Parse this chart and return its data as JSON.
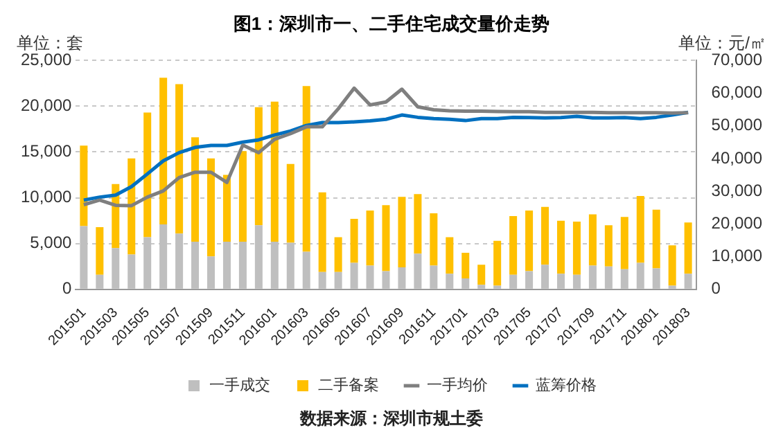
{
  "chart_data": {
    "type": "bar",
    "title": "图1：深圳市一、二手住宅成交量价走势",
    "ylabel": "单位：套",
    "y2label": "单位：元/㎡",
    "categories": [
      "201501",
      null,
      "201503",
      null,
      "201505",
      null,
      "201507",
      null,
      "201509",
      null,
      "201511",
      null,
      "201601",
      null,
      "201603",
      null,
      "201605",
      null,
      "201607",
      null,
      "201609",
      null,
      "201611",
      null,
      "201701",
      null,
      "201703",
      null,
      "201705",
      null,
      "201707",
      null,
      "201709",
      null,
      "201711",
      null,
      "201801",
      null,
      "201803"
    ],
    "stacked": true,
    "series": [
      {
        "name": "一手成交",
        "color": "#bfbfbf",
        "values": [
          6900,
          1600,
          4500,
          3800,
          5700,
          7100,
          6100,
          5200,
          3600,
          5200,
          5200,
          7000,
          5200,
          5100,
          4100,
          1900,
          1900,
          2900,
          2600,
          2000,
          2400,
          3900,
          2600,
          1700,
          1200,
          500,
          400,
          1600,
          2000,
          2700,
          1700,
          1600,
          2600,
          2500,
          2200,
          2900,
          2300,
          400,
          1700
        ]
      },
      {
        "name": "二手备案",
        "color": "#ffc000",
        "values": [
          8800,
          5200,
          7000,
          10500,
          13600,
          16000,
          16300,
          11400,
          10700,
          7300,
          9900,
          12900,
          15300,
          8600,
          18100,
          8700,
          3800,
          4800,
          6000,
          7200,
          7700,
          6500,
          5700,
          4000,
          2800,
          2200,
          4900,
          6400,
          6600,
          6300,
          5800,
          5800,
          5600,
          4500,
          5700,
          7300,
          6400,
          4400,
          5600
        ]
      },
      {
        "name": "一手均价",
        "type": "line",
        "axis": "y2",
        "color": "#7f7f7f",
        "values": [
          25900,
          27300,
          25700,
          25600,
          28200,
          30100,
          34200,
          35800,
          35800,
          32700,
          44100,
          41800,
          45900,
          47600,
          49700,
          49700,
          55200,
          61500,
          56400,
          57300,
          61200,
          55800,
          54900,
          54600,
          54500,
          54500,
          54400,
          54300,
          54300,
          54100,
          54100,
          54100,
          54100,
          54000,
          54000,
          54000,
          54000,
          53900,
          54000
        ]
      },
      {
        "name": "蓝筹价格",
        "type": "line",
        "axis": "y2",
        "color": "#0070c0",
        "values": [
          27300,
          28200,
          28800,
          31400,
          35300,
          39300,
          41800,
          43400,
          44000,
          44000,
          45000,
          45700,
          47200,
          48400,
          50100,
          51000,
          51000,
          51200,
          51500,
          52000,
          53300,
          52600,
          52200,
          52000,
          51600,
          52200,
          52200,
          52600,
          52500,
          52400,
          52500,
          52900,
          52400,
          52400,
          52500,
          52200,
          52600,
          53300,
          54100
        ]
      }
    ],
    "ylim": [
      0,
      25000
    ],
    "yticks": [
      0,
      {
        "value": 5000,
        "label": "5,000"
      },
      {
        "value": 10000,
        "label": "10,000"
      },
      {
        "value": 15000,
        "label": "15,000"
      },
      {
        "value": 20000,
        "label": "20,000"
      },
      {
        "value": 25000,
        "label": "25,000"
      }
    ],
    "y2lim": [
      0,
      70000
    ],
    "y2ticks": [
      0,
      {
        "value": 10000,
        "label": "10,000"
      },
      {
        "value": 20000,
        "label": "20,000"
      },
      {
        "value": 30000,
        "label": "30,000"
      },
      {
        "value": 40000,
        "label": "40,000"
      },
      {
        "value": 50000,
        "label": "50,000"
      },
      {
        "value": 60000,
        "label": "60,000"
      },
      {
        "value": 70000,
        "label": "70,000"
      }
    ],
    "grid": "y",
    "legend": "bottom",
    "marker": "none",
    "line_style": "solid",
    "annotations": [
      "数据来源：深圳市规土委"
    ]
  }
}
